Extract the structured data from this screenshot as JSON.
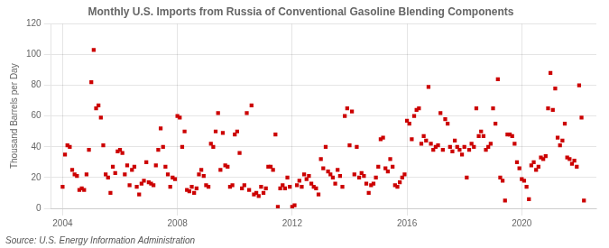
{
  "chart_data": {
    "type": "scatter",
    "title": "Monthly U.S. Imports from Russia of Conventional Gasoline Blending Components",
    "ylabel": "Thousand Barrels per Day",
    "source": "Source: U.S. Energy Information Administration",
    "color": "#cc0000",
    "marker": "square",
    "grid": true,
    "xlim": [
      2003.6,
      2022.6
    ],
    "ylim": [
      0,
      120
    ],
    "xticks": [
      2004,
      2008,
      2012,
      2016,
      2020
    ],
    "yticks": [
      0,
      20,
      40,
      60,
      80,
      100,
      120
    ],
    "x": [
      2004.0,
      2004.083,
      2004.167,
      2004.25,
      2004.333,
      2004.417,
      2004.5,
      2004.583,
      2004.667,
      2004.75,
      2004.833,
      2004.917,
      2005.0,
      2005.083,
      2005.167,
      2005.25,
      2005.333,
      2005.417,
      2005.5,
      2005.583,
      2005.667,
      2005.75,
      2005.833,
      2005.917,
      2006.0,
      2006.083,
      2006.167,
      2006.25,
      2006.333,
      2006.417,
      2006.5,
      2006.583,
      2006.667,
      2006.75,
      2006.833,
      2006.917,
      2007.0,
      2007.083,
      2007.167,
      2007.25,
      2007.333,
      2007.417,
      2007.5,
      2007.583,
      2007.667,
      2007.75,
      2007.833,
      2007.917,
      2008.0,
      2008.083,
      2008.167,
      2008.25,
      2008.333,
      2008.417,
      2008.5,
      2008.583,
      2008.667,
      2008.75,
      2008.833,
      2008.917,
      2009.0,
      2009.083,
      2009.167,
      2009.25,
      2009.333,
      2009.417,
      2009.5,
      2009.583,
      2009.667,
      2009.75,
      2009.833,
      2009.917,
      2010.0,
      2010.083,
      2010.167,
      2010.25,
      2010.333,
      2010.417,
      2010.5,
      2010.583,
      2010.667,
      2010.75,
      2010.833,
      2010.917,
      2011.0,
      2011.083,
      2011.167,
      2011.25,
      2011.333,
      2011.417,
      2011.5,
      2011.583,
      2011.667,
      2011.75,
      2011.833,
      2011.917,
      2012.0,
      2012.083,
      2012.167,
      2012.25,
      2012.333,
      2012.417,
      2012.5,
      2012.583,
      2012.667,
      2012.75,
      2012.833,
      2012.917,
      2013.0,
      2013.083,
      2013.167,
      2013.25,
      2013.333,
      2013.417,
      2013.5,
      2013.583,
      2013.667,
      2013.75,
      2013.833,
      2013.917,
      2014.0,
      2014.083,
      2014.167,
      2014.25,
      2014.333,
      2014.417,
      2014.5,
      2014.583,
      2014.667,
      2014.75,
      2014.833,
      2014.917,
      2015.0,
      2015.083,
      2015.167,
      2015.25,
      2015.333,
      2015.417,
      2015.5,
      2015.583,
      2015.667,
      2015.75,
      2015.833,
      2015.917,
      2016.0,
      2016.083,
      2016.167,
      2016.25,
      2016.333,
      2016.417,
      2016.5,
      2016.583,
      2016.667,
      2016.75,
      2016.833,
      2016.917,
      2017.0,
      2017.083,
      2017.167,
      2017.25,
      2017.333,
      2017.417,
      2017.5,
      2017.583,
      2017.667,
      2017.75,
      2017.833,
      2017.917,
      2018.0,
      2018.083,
      2018.167,
      2018.25,
      2018.333,
      2018.417,
      2018.5,
      2018.583,
      2018.667,
      2018.75,
      2018.833,
      2018.917,
      2019.0,
      2019.083,
      2019.167,
      2019.25,
      2019.333,
      2019.417,
      2019.5,
      2019.583,
      2019.667,
      2019.75,
      2019.833,
      2019.917,
      2020.0,
      2020.083,
      2020.167,
      2020.25,
      2020.333,
      2020.417,
      2020.5,
      2020.583,
      2020.667,
      2020.75,
      2020.833,
      2020.917,
      2021.0,
      2021.083,
      2021.167,
      2021.25,
      2021.333,
      2021.417,
      2021.5,
      2021.583,
      2021.667,
      2021.75,
      2021.833,
      2021.917,
      2022.0,
      2022.083,
      2022.167
    ],
    "values": [
      14,
      35,
      41,
      40,
      25,
      22,
      21,
      12,
      13,
      12,
      22,
      38,
      82,
      103,
      65,
      67,
      59,
      41,
      22,
      20,
      10,
      27,
      23,
      37,
      38,
      36,
      22,
      28,
      15,
      25,
      27,
      14,
      9,
      16,
      18,
      30,
      17,
      16,
      15,
      28,
      38,
      52,
      40,
      27,
      22,
      14,
      20,
      19,
      60,
      59,
      40,
      50,
      12,
      11,
      14,
      10,
      13,
      22,
      25,
      21,
      15,
      14,
      42,
      40,
      50,
      62,
      25,
      49,
      28,
      27,
      14,
      15,
      48,
      50,
      36,
      13,
      15,
      62,
      12,
      67,
      9,
      10,
      8,
      14,
      10,
      13,
      27,
      27,
      25,
      48,
      1,
      13,
      15,
      13,
      20,
      14,
      1,
      2,
      15,
      18,
      14,
      22,
      19,
      21,
      16,
      14,
      13,
      9,
      32,
      26,
      40,
      24,
      22,
      20,
      16,
      25,
      21,
      14,
      60,
      65,
      41,
      63,
      22,
      40,
      20,
      23,
      21,
      16,
      10,
      15,
      16,
      20,
      27,
      45,
      46,
      26,
      24,
      32,
      27,
      15,
      14,
      17,
      20,
      22,
      57,
      55,
      45,
      60,
      64,
      65,
      42,
      47,
      44,
      79,
      42,
      38,
      40,
      41,
      62,
      38,
      58,
      55,
      40,
      37,
      44,
      40,
      38,
      35,
      40,
      20,
      38,
      42,
      40,
      65,
      47,
      50,
      47,
      38,
      40,
      42,
      65,
      55,
      84,
      20,
      18,
      5,
      48,
      48,
      47,
      42,
      30,
      26,
      19,
      18,
      14,
      6,
      28,
      30,
      25,
      27,
      33,
      32,
      34,
      65,
      88,
      64,
      78,
      46,
      41,
      44,
      55,
      33,
      32,
      29,
      31,
      27,
      80,
      59,
      5
    ]
  }
}
